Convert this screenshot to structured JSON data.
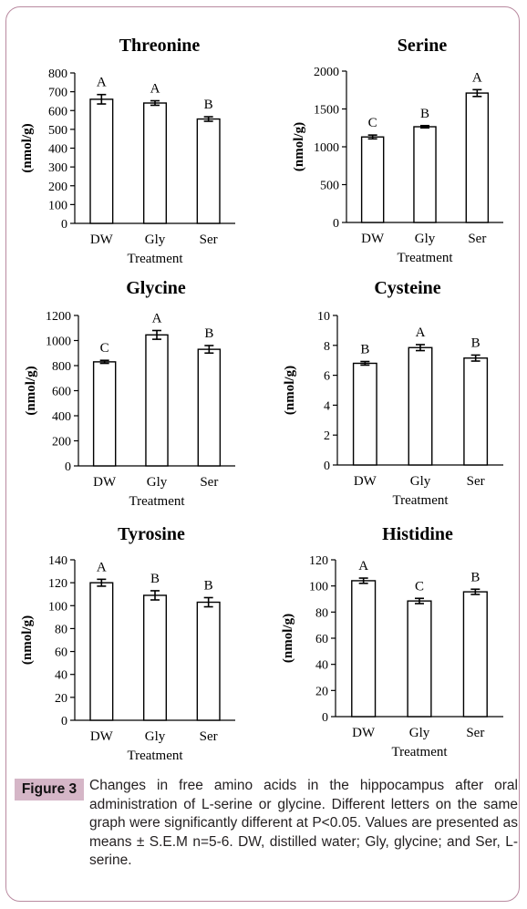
{
  "figure": {
    "label": "Figure 3",
    "caption": "Changes in free amino acids in the hippocampus after oral administration of L-serine or glycine. Different letters on the same graph were significantly different at P<0.05. Values are presented as means ± S.E.M n=5-6. DW, distilled water; Gly, glycine; and Ser, L-serine."
  },
  "chart_data": [
    {
      "type": "bar",
      "title": "Threonine",
      "xlabel": "Treatment",
      "ylabel": "(nmol/g)",
      "categories": [
        "DW",
        "Gly",
        "Ser"
      ],
      "values": [
        660,
        640,
        555
      ],
      "errors": [
        25,
        12,
        12
      ],
      "sig_letters": [
        "A",
        "A",
        "B"
      ],
      "ylim": [
        0,
        800
      ],
      "yticks": [
        0,
        100,
        200,
        300,
        400,
        500,
        600,
        700,
        800
      ]
    },
    {
      "type": "bar",
      "title": "Serine",
      "xlabel": "Treatment",
      "ylabel": "(nmol/g)",
      "categories": [
        "DW",
        "Gly",
        "Ser"
      ],
      "values": [
        1130,
        1265,
        1710
      ],
      "errors": [
        25,
        15,
        45
      ],
      "sig_letters": [
        "C",
        "B",
        "A"
      ],
      "ylim": [
        0,
        2000
      ],
      "yticks": [
        0,
        500,
        1000,
        1500,
        2000
      ]
    },
    {
      "type": "bar",
      "title": "Glycine",
      "xlabel": "Treatment",
      "ylabel": "(nmol/g)",
      "categories": [
        "DW",
        "Gly",
        "Ser"
      ],
      "values": [
        830,
        1045,
        930
      ],
      "errors": [
        12,
        35,
        30
      ],
      "sig_letters": [
        "C",
        "A",
        "B"
      ],
      "ylim": [
        0,
        1200
      ],
      "yticks": [
        0,
        200,
        400,
        600,
        800,
        1000,
        1200
      ]
    },
    {
      "type": "bar",
      "title": "Cysteine",
      "xlabel": "Treatment",
      "ylabel": "(nmol/g)",
      "categories": [
        "DW",
        "Gly",
        "Ser"
      ],
      "values": [
        6.8,
        7.85,
        7.15
      ],
      "errors": [
        0.12,
        0.2,
        0.2
      ],
      "sig_letters": [
        "B",
        "A",
        "B"
      ],
      "ylim": [
        0,
        10
      ],
      "yticks": [
        0,
        2,
        4,
        6,
        8,
        10
      ]
    },
    {
      "type": "bar",
      "title": "Tyrosine",
      "xlabel": "Treatment",
      "ylabel": "(nmol/g)",
      "categories": [
        "DW",
        "Gly",
        "Ser"
      ],
      "values": [
        120,
        109,
        103
      ],
      "errors": [
        3,
        4,
        4
      ],
      "sig_letters": [
        "A",
        "B",
        "B"
      ],
      "ylim": [
        0,
        140
      ],
      "yticks": [
        0,
        20,
        40,
        60,
        80,
        100,
        120,
        140
      ]
    },
    {
      "type": "bar",
      "title": "Histidine",
      "xlabel": "Treatment",
      "ylabel": "(nmol/g)",
      "categories": [
        "DW",
        "Gly",
        "Ser"
      ],
      "values": [
        104,
        88.5,
        95.5
      ],
      "errors": [
        2,
        2,
        2
      ],
      "sig_letters": [
        "A",
        "C",
        "B"
      ],
      "ylim": [
        0,
        120
      ],
      "yticks": [
        0,
        20,
        40,
        60,
        80,
        100,
        120
      ]
    }
  ]
}
